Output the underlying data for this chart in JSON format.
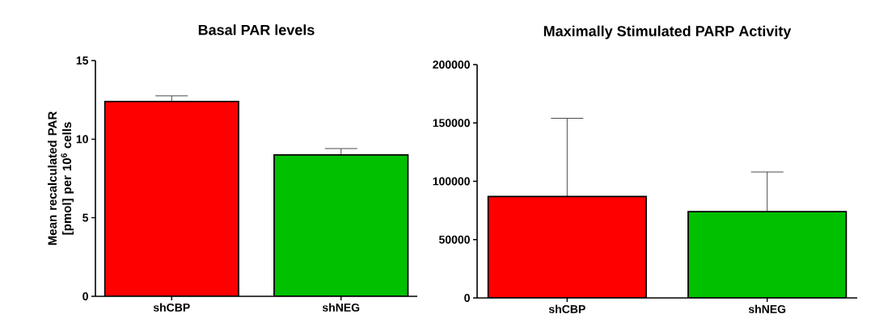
{
  "chart_data": [
    {
      "type": "bar",
      "title": "Basal PAR levels",
      "ylabel": "Mean recalculated PAR [pmol] per 10$^{6}$ cells",
      "categories": [
        "shCBP",
        "shNEG"
      ],
      "values": [
        12.4,
        9.0
      ],
      "colors": [
        "#ff0000",
        "#00c000"
      ],
      "errors": [
        0.35,
        0.4
      ],
      "ylim": [
        0,
        15
      ],
      "yticks": [
        0,
        5,
        10,
        15
      ]
    },
    {
      "type": "bar",
      "title": "Maximally Stimulated PARP Activity",
      "categories": [
        "shCBP",
        "shNEG"
      ],
      "values": [
        87000,
        74000
      ],
      "colors": [
        "#ff0000",
        "#00c000"
      ],
      "errors": [
        67000,
        34000
      ],
      "ylim": [
        0,
        200000
      ],
      "yticks": [
        0,
        50000,
        100000,
        150000,
        200000
      ]
    }
  ]
}
